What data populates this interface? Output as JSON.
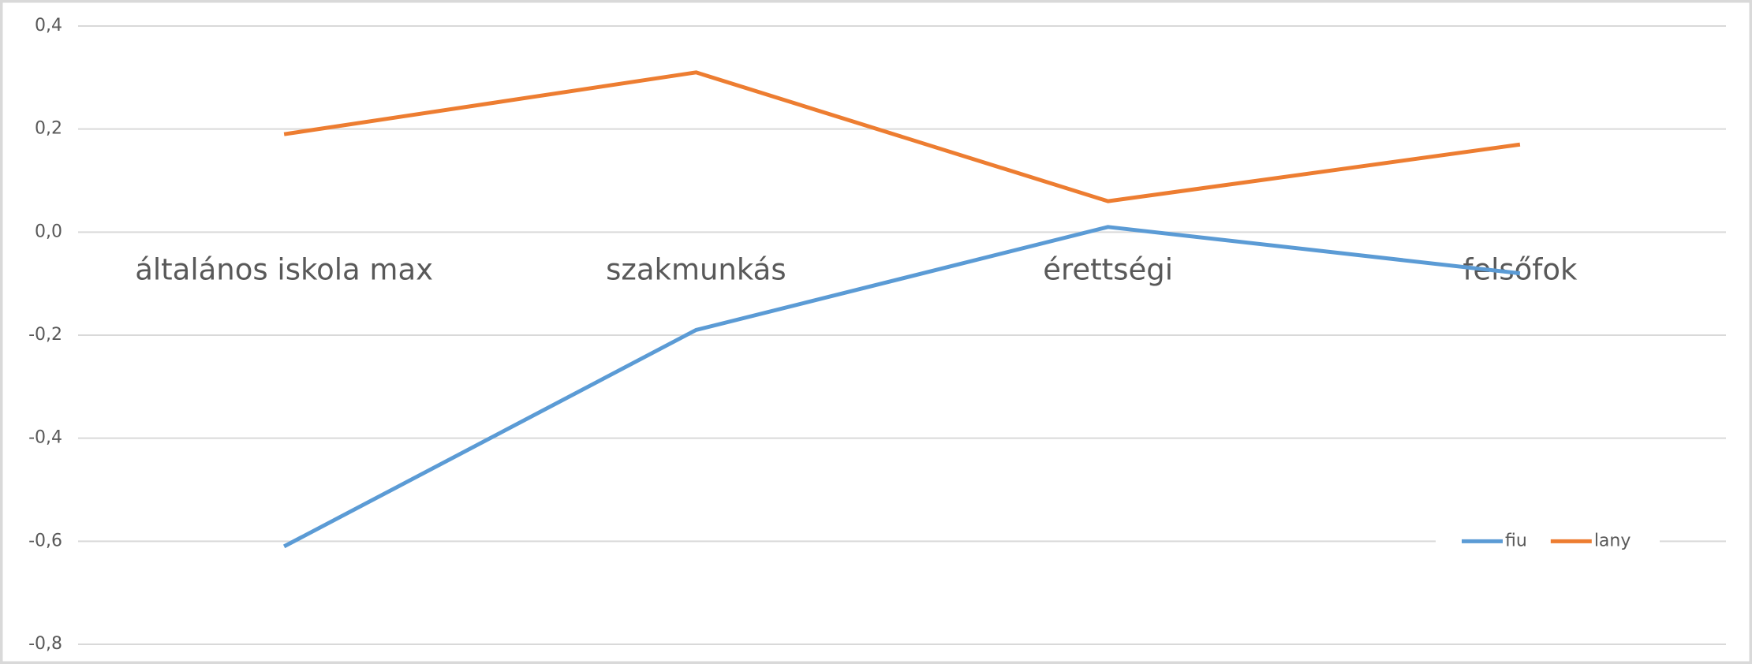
{
  "chart_data": {
    "type": "line",
    "categories": [
      "általános iskola max",
      "szakmunkás",
      "érettségi",
      "felsőfok"
    ],
    "series": [
      {
        "name": "fiu",
        "color": "#5b9bd5",
        "values": [
          -0.61,
          -0.19,
          0.01,
          -0.08
        ]
      },
      {
        "name": "lany",
        "color": "#ed7d31",
        "values": [
          0.19,
          0.31,
          0.06,
          0.17
        ]
      }
    ],
    "ylim": [
      -0.8,
      0.4
    ],
    "yticks": [
      {
        "value": -0.8,
        "label": "-0,8"
      },
      {
        "value": -0.6,
        "label": "-0,6"
      },
      {
        "value": -0.4,
        "label": "-0,4"
      },
      {
        "value": -0.2,
        "label": "-0,2"
      },
      {
        "value": 0,
        "label": "0,0"
      },
      {
        "value": 0.2,
        "label": "0,2"
      },
      {
        "value": 0.4,
        "label": "0,4"
      }
    ],
    "grid": true,
    "legend": "lower right"
  }
}
